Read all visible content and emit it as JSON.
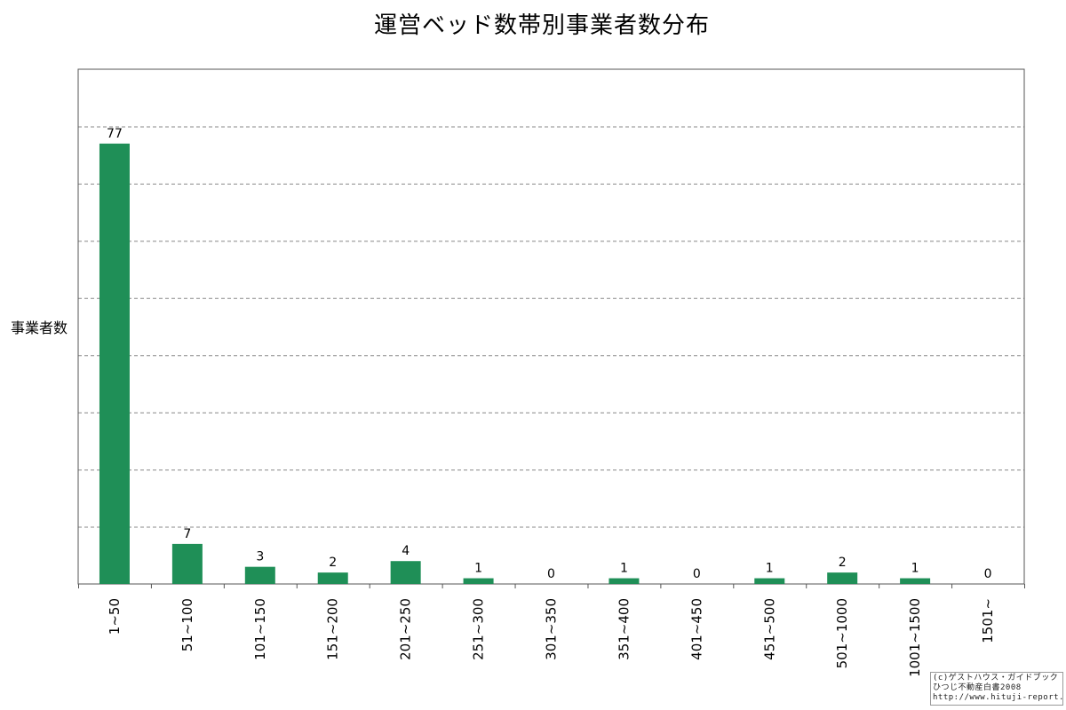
{
  "chart_data": {
    "type": "bar",
    "title": "運営ベッド数帯別事業者数分布",
    "xlabel": "",
    "ylabel": "事業者数",
    "categories": [
      "1~50",
      "51~100",
      "101~150",
      "151~200",
      "201~250",
      "251~300",
      "301~350",
      "351~400",
      "401~450",
      "451~500",
      "501~1000",
      "1001~1500",
      "1501~"
    ],
    "values": [
      77,
      7,
      3,
      2,
      4,
      1,
      0,
      1,
      0,
      1,
      2,
      1,
      0
    ],
    "ylim": [
      0,
      90
    ],
    "grid": true,
    "bar_color": "#1f8f57",
    "grid_color": "#888888"
  },
  "credit": {
    "line1": "(c)ゲストハウス・ガイドブック",
    "line2": "ひつじ不動産白書2008",
    "line3": "http://www.hituji-report.jp/"
  }
}
